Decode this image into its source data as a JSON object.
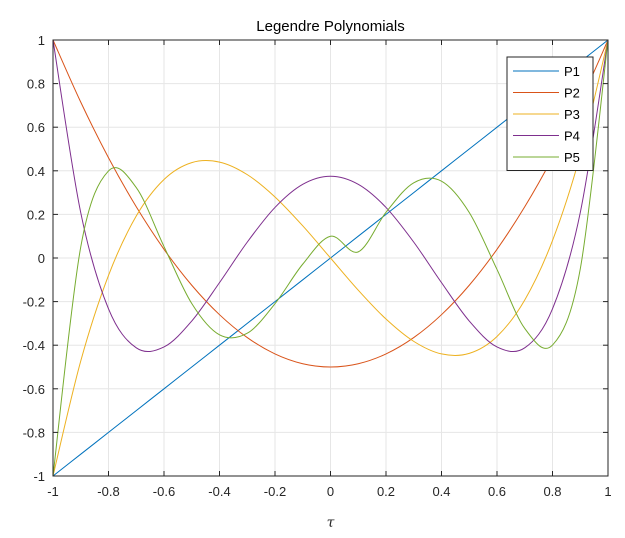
{
  "chart_data": {
    "type": "line",
    "title": "Legendre Polynomials",
    "xlabel": "τ",
    "ylabel": "",
    "xlim": [
      -1,
      1
    ],
    "ylim": [
      -1,
      1
    ],
    "xticks": [
      -1,
      -0.8,
      -0.6,
      -0.4,
      -0.2,
      0,
      0.2,
      0.4,
      0.6,
      0.8,
      1
    ],
    "yticks": [
      -1,
      -0.8,
      -0.6,
      -0.4,
      -0.2,
      0,
      0.2,
      0.4,
      0.6,
      0.8,
      1
    ],
    "xtick_labels": [
      "-1",
      "-0.8",
      "-0.6",
      "-0.4",
      "-0.2",
      "0",
      "0.2",
      "0.4",
      "0.6",
      "0.8",
      "1"
    ],
    "ytick_labels": [
      "-1",
      "-0.8",
      "-0.6",
      "-0.4",
      "-0.2",
      "0",
      "0.2",
      "0.4",
      "0.6",
      "0.8",
      "1"
    ],
    "grid": true,
    "legend_position": "top-right",
    "x": [
      -1,
      -0.9,
      -0.8,
      -0.7,
      -0.6,
      -0.5,
      -0.4,
      -0.3,
      -0.2,
      -0.1,
      0,
      0.1,
      0.2,
      0.3,
      0.4,
      0.5,
      0.6,
      0.7,
      0.8,
      0.9,
      1
    ],
    "series": [
      {
        "name": "P1",
        "color": "#0072BD",
        "values": [
          -1,
          -0.9,
          -0.8,
          -0.7,
          -0.6,
          -0.5,
          -0.4,
          -0.3,
          -0.2,
          -0.1,
          0,
          0.1,
          0.2,
          0.3,
          0.4,
          0.5,
          0.6,
          0.7,
          0.8,
          0.9,
          1
        ]
      },
      {
        "name": "P2",
        "color": "#D95319",
        "values": [
          1,
          0.715,
          0.46,
          0.235,
          0.04,
          -0.125,
          -0.26,
          -0.365,
          -0.44,
          -0.485,
          -0.5,
          -0.485,
          -0.44,
          -0.365,
          -0.26,
          -0.125,
          0.04,
          0.235,
          0.46,
          0.715,
          1
        ]
      },
      {
        "name": "P3",
        "color": "#EDB120",
        "values": [
          -1,
          -0.4725,
          -0.08,
          0.1925,
          0.36,
          0.4375,
          0.44,
          0.3825,
          0.28,
          0.1475,
          0,
          -0.1475,
          -0.28,
          -0.3825,
          -0.44,
          -0.4375,
          -0.36,
          -0.1925,
          0.08,
          0.4725,
          1
        ]
      },
      {
        "name": "P4",
        "color": "#7E2F8E",
        "values": [
          1,
          0.2079,
          -0.233,
          -0.4121,
          -0.408,
          -0.2891,
          -0.113,
          0.0729,
          0.232,
          0.3379,
          0.375,
          0.3379,
          0.232,
          0.0729,
          -0.113,
          -0.2891,
          -0.408,
          -0.4121,
          -0.233,
          0.2079,
          1
        ]
      },
      {
        "name": "P5",
        "color": "#77AC30",
        "values": [
          -1,
          0.0506,
          0.3995,
          0.3232,
          0.0526,
          -0.2089,
          -0.3525,
          -0.3451,
          -0.2093,
          -0.0281,
          0.1,
          0.0281,
          0.2093,
          0.3451,
          0.3525,
          0.2089,
          -0.0526,
          -0.3232,
          -0.3995,
          -0.0506,
          1
        ]
      }
    ]
  }
}
